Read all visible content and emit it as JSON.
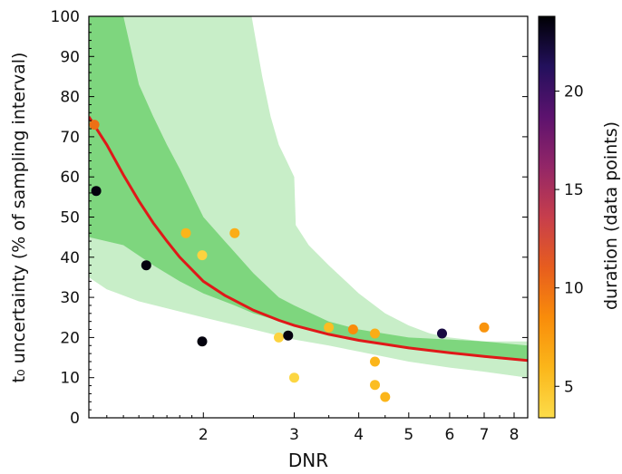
{
  "chart_data": {
    "type": "scatter",
    "xlabel": "DNR",
    "ylabel": "t₀ uncertainty (% of sampling interval)",
    "x_scale": "log",
    "xlim": [
      1.2,
      8.5
    ],
    "ylim": [
      0,
      100
    ],
    "x_ticks": [
      2,
      3,
      4,
      5,
      6,
      7,
      8
    ],
    "y_ticks": [
      0,
      10,
      20,
      30,
      40,
      50,
      60,
      70,
      80,
      90,
      100
    ],
    "grid": false,
    "colorbar": {
      "label": "duration (data points)",
      "range": [
        3.4,
        23.8
      ],
      "ticks": [
        5,
        10,
        15,
        20
      ],
      "colormap": "inferno",
      "stops": [
        "#fcdc4a",
        "#fbb61a",
        "#f98c0a",
        "#e75d1e",
        "#c73e4c",
        "#932667",
        "#5c126e",
        "#23105c",
        "#000004"
      ]
    },
    "bands": [
      {
        "name": "outer",
        "color": "#c8eec8",
        "upper": [
          [
            1.2,
            100
          ],
          [
            2.48,
            100
          ],
          [
            2.52,
            95
          ],
          [
            2.6,
            85
          ],
          [
            2.7,
            75
          ],
          [
            2.8,
            68
          ],
          [
            2.9,
            64
          ],
          [
            3.0,
            60
          ],
          [
            3.02,
            48
          ],
          [
            3.2,
            43
          ],
          [
            3.5,
            38
          ],
          [
            4.0,
            31
          ],
          [
            4.5,
            26
          ],
          [
            5.0,
            23
          ],
          [
            5.5,
            21
          ],
          [
            6.0,
            20
          ],
          [
            7.0,
            19
          ],
          [
            8.5,
            19
          ]
        ],
        "lower": [
          [
            1.2,
            35
          ],
          [
            1.3,
            32
          ],
          [
            1.5,
            29
          ],
          [
            2.0,
            25
          ],
          [
            2.5,
            22
          ],
          [
            3.0,
            19.5
          ],
          [
            3.5,
            18
          ],
          [
            4.0,
            16.5
          ],
          [
            5.0,
            14
          ],
          [
            6.0,
            12.5
          ],
          [
            7.0,
            11.5
          ],
          [
            8.5,
            10
          ]
        ]
      },
      {
        "name": "inner",
        "color": "#7ed67e",
        "upper": [
          [
            1.2,
            100
          ],
          [
            1.4,
            100
          ],
          [
            1.5,
            83
          ],
          [
            1.6,
            75
          ],
          [
            1.7,
            68
          ],
          [
            1.8,
            62
          ],
          [
            2.0,
            50
          ],
          [
            2.2,
            44
          ],
          [
            2.5,
            36
          ],
          [
            2.8,
            30
          ],
          [
            3.0,
            28
          ],
          [
            3.5,
            24
          ],
          [
            4.0,
            22
          ],
          [
            5.0,
            20
          ],
          [
            6.0,
            19.5
          ],
          [
            7.0,
            19
          ],
          [
            8.5,
            18
          ]
        ],
        "lower": [
          [
            1.2,
            45
          ],
          [
            1.4,
            43
          ],
          [
            1.6,
            38
          ],
          [
            1.8,
            34
          ],
          [
            2.0,
            31
          ],
          [
            2.3,
            28
          ],
          [
            2.5,
            26
          ],
          [
            3.0,
            23
          ],
          [
            3.5,
            21
          ],
          [
            4.0,
            19.5
          ],
          [
            5.0,
            17.5
          ],
          [
            6.0,
            16
          ],
          [
            7.0,
            15
          ],
          [
            8.5,
            14
          ]
        ]
      }
    ],
    "curve": {
      "color": "#e01818",
      "points": [
        [
          1.2,
          75
        ],
        [
          1.3,
          68
        ],
        [
          1.4,
          60.5
        ],
        [
          1.5,
          54
        ],
        [
          1.6,
          48.5
        ],
        [
          1.7,
          44
        ],
        [
          1.8,
          40
        ],
        [
          2.0,
          34
        ],
        [
          2.2,
          30.5
        ],
        [
          2.5,
          26.8
        ],
        [
          2.8,
          24.3
        ],
        [
          3.0,
          23
        ],
        [
          3.5,
          20.8
        ],
        [
          4.0,
          19.3
        ],
        [
          4.5,
          18.3
        ],
        [
          5.0,
          17.4
        ],
        [
          6.0,
          16.2
        ],
        [
          7.0,
          15.3
        ],
        [
          8.5,
          14.3
        ]
      ]
    },
    "points": [
      {
        "x": 1.23,
        "y": 73,
        "duration": 10
      },
      {
        "x": 1.24,
        "y": 56.5,
        "duration": 23.5
      },
      {
        "x": 1.55,
        "y": 38,
        "duration": 23.5
      },
      {
        "x": 1.85,
        "y": 46,
        "duration": 6
      },
      {
        "x": 1.99,
        "y": 40.5,
        "duration": 4
      },
      {
        "x": 1.99,
        "y": 19,
        "duration": 23.5
      },
      {
        "x": 2.3,
        "y": 46,
        "duration": 6.5
      },
      {
        "x": 2.8,
        "y": 20,
        "duration": 4
      },
      {
        "x": 2.92,
        "y": 20.5,
        "duration": 23.5
      },
      {
        "x": 3.0,
        "y": 10,
        "duration": 3.8
      },
      {
        "x": 3.5,
        "y": 22.5,
        "duration": 5.5
      },
      {
        "x": 3.9,
        "y": 22,
        "duration": 8.5
      },
      {
        "x": 4.3,
        "y": 21,
        "duration": 6.5
      },
      {
        "x": 4.3,
        "y": 14,
        "duration": 6
      },
      {
        "x": 4.3,
        "y": 8.2,
        "duration": 5.5
      },
      {
        "x": 4.5,
        "y": 5.2,
        "duration": 6
      },
      {
        "x": 5.8,
        "y": 21,
        "duration": 22
      },
      {
        "x": 7.0,
        "y": 22.5,
        "duration": 8
      }
    ]
  }
}
